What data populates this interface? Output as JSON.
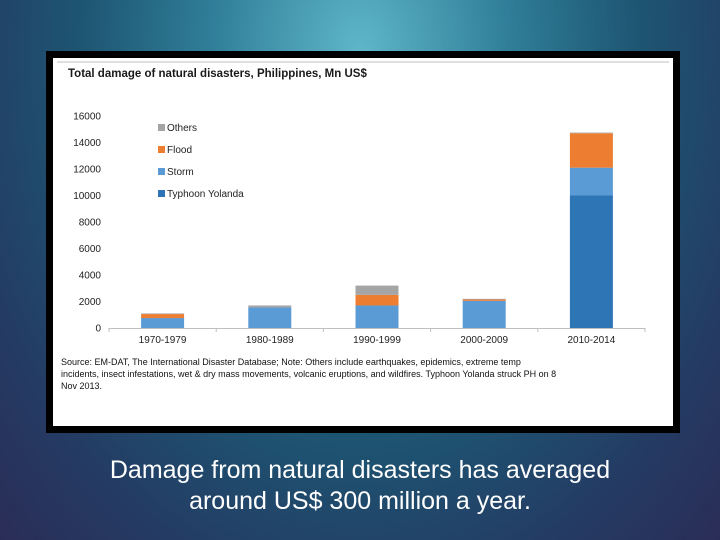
{
  "chart_data": {
    "type": "bar",
    "stacked": true,
    "title": "Total damage of natural disasters, Philippines, Mn US$",
    "categories": [
      "1970-1979",
      "1980-1989",
      "1990-1999",
      "2000-2009",
      "2010-2014"
    ],
    "series": [
      {
        "name": "Typhoon Yolanda",
        "color": "#2e75b6",
        "values": [
          0,
          0,
          0,
          0,
          10000
        ]
      },
      {
        "name": "Storm",
        "color": "#5b9bd5",
        "values": [
          750,
          1550,
          1700,
          2050,
          2100
        ]
      },
      {
        "name": "Flood",
        "color": "#ed7d31",
        "values": [
          300,
          0,
          800,
          100,
          2600
        ]
      },
      {
        "name": "Others",
        "color": "#a5a5a5",
        "values": [
          50,
          150,
          700,
          50,
          50
        ]
      }
    ],
    "ylim": [
      0,
      16000
    ],
    "yticks": [
      "0",
      "2000",
      "4000",
      "6000",
      "8000",
      "10000",
      "12000",
      "14000",
      "16000"
    ],
    "legend_position": "top-left",
    "source_lines": [
      "Source: EM-DAT, The International Disaster Database; Note: Others include earthquakes, epidemics, extreme temp",
      "incidents, insect infestations, wet & dry mass movements, volcanic eruptions, and wildfires. Typhoon Yolanda struck PH on 8",
      "Nov 2013."
    ]
  },
  "caption": {
    "line1": "Damage from natural disasters has averaged",
    "line2": "around US$ 300 million a year."
  }
}
